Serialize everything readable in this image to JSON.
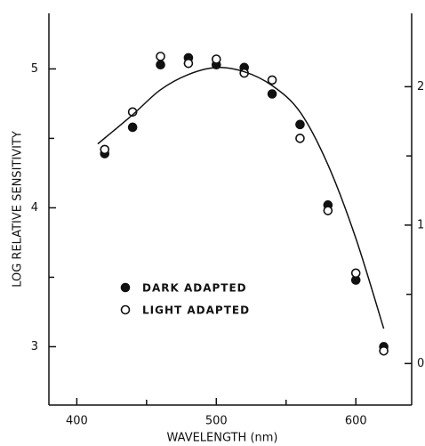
{
  "chart_data": {
    "type": "scatter",
    "xlabel": "WAVELENGTH (nm)",
    "ylabel": "LOG RELATIVE SENSITIVITY",
    "xlim": [
      380,
      640
    ],
    "xticks": [
      400,
      500,
      600
    ],
    "xminorticks": [
      450,
      550
    ],
    "ylim": [
      2.58,
      5.4
    ],
    "yticks": [
      3,
      4,
      5
    ],
    "yminorticks": [
      3.5,
      4.5
    ],
    "y2lim": [
      -0.3,
      2.53
    ],
    "y2ticks": [
      0,
      1,
      2
    ],
    "y2minorticks": [
      0.5,
      1.5
    ],
    "color": "#111111",
    "series": [
      {
        "name": "DARK ADAPTED",
        "marker": "filled",
        "x": [
          420,
          440,
          460,
          480,
          500,
          520,
          540,
          560,
          580,
          600,
          620
        ],
        "values": [
          4.39,
          4.58,
          5.03,
          5.08,
          5.03,
          5.01,
          4.82,
          4.6,
          4.02,
          3.48,
          3.0
        ]
      },
      {
        "name": "LIGHT ADAPTED",
        "marker": "open",
        "x": [
          420,
          440,
          460,
          480,
          500,
          520,
          540,
          560,
          580,
          600,
          620
        ],
        "values": [
          4.42,
          4.69,
          5.09,
          5.04,
          5.07,
          4.97,
          4.92,
          4.5,
          3.98,
          3.53,
          2.97
        ]
      },
      {
        "marker": "line",
        "x": [
          415,
          440,
          460,
          480,
          500,
          520,
          540,
          560,
          580,
          600,
          620
        ],
        "values": [
          4.46,
          4.67,
          4.85,
          4.96,
          5.01,
          4.98,
          4.88,
          4.69,
          4.31,
          3.78,
          3.13
        ]
      }
    ]
  }
}
